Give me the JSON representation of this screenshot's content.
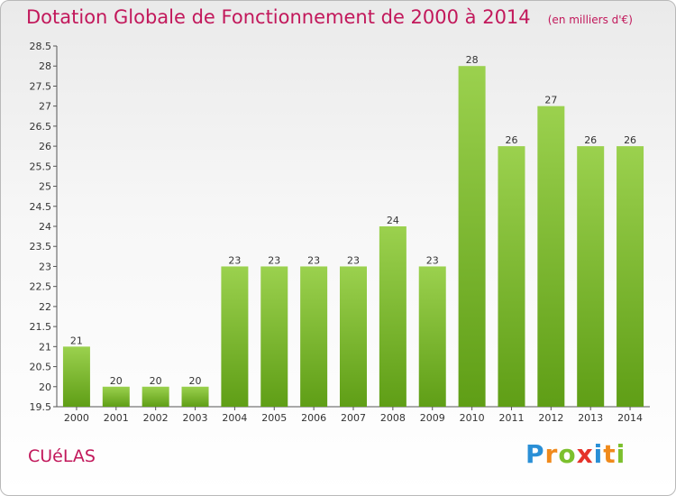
{
  "chart_data": {
    "type": "bar",
    "title": "Dotation Globale de Fonctionnement de 2000 à 2014",
    "subtitle": "(en milliers d'€)",
    "categories": [
      "2000",
      "2001",
      "2002",
      "2003",
      "2004",
      "2005",
      "2006",
      "2007",
      "2008",
      "2009",
      "2010",
      "2011",
      "2012",
      "2013",
      "2014"
    ],
    "values": [
      21,
      20,
      20,
      20,
      23,
      23,
      23,
      23,
      24,
      23,
      28,
      26,
      27,
      26,
      26
    ],
    "data_labels": [
      "21",
      "20",
      "20",
      "20",
      "23",
      "23",
      "23",
      "23",
      "24",
      "23",
      "28",
      "26",
      "27",
      "26",
      "26"
    ],
    "ylim": [
      19.5,
      28.5
    ],
    "yticks": [
      "19.5",
      "20",
      "20.5",
      "21",
      "21.5",
      "22",
      "22.5",
      "23",
      "23.5",
      "24",
      "24.5",
      "25",
      "25.5",
      "26",
      "26.5",
      "27",
      "27.5",
      "28",
      "28.5"
    ],
    "grid": false,
    "bar_color": "#7cc02d"
  },
  "footer": {
    "commune": "CUéLAS",
    "brand_letters": [
      {
        "ch": "P",
        "color": "#2a8fd6"
      },
      {
        "ch": "r",
        "color": "#f08a1c"
      },
      {
        "ch": "o",
        "color": "#7cc02d"
      },
      {
        "ch": "x",
        "color": "#e5332a"
      },
      {
        "ch": "i",
        "color": "#2a8fd6"
      },
      {
        "ch": "t",
        "color": "#f08a1c"
      },
      {
        "ch": "i",
        "color": "#7cc02d"
      }
    ]
  }
}
